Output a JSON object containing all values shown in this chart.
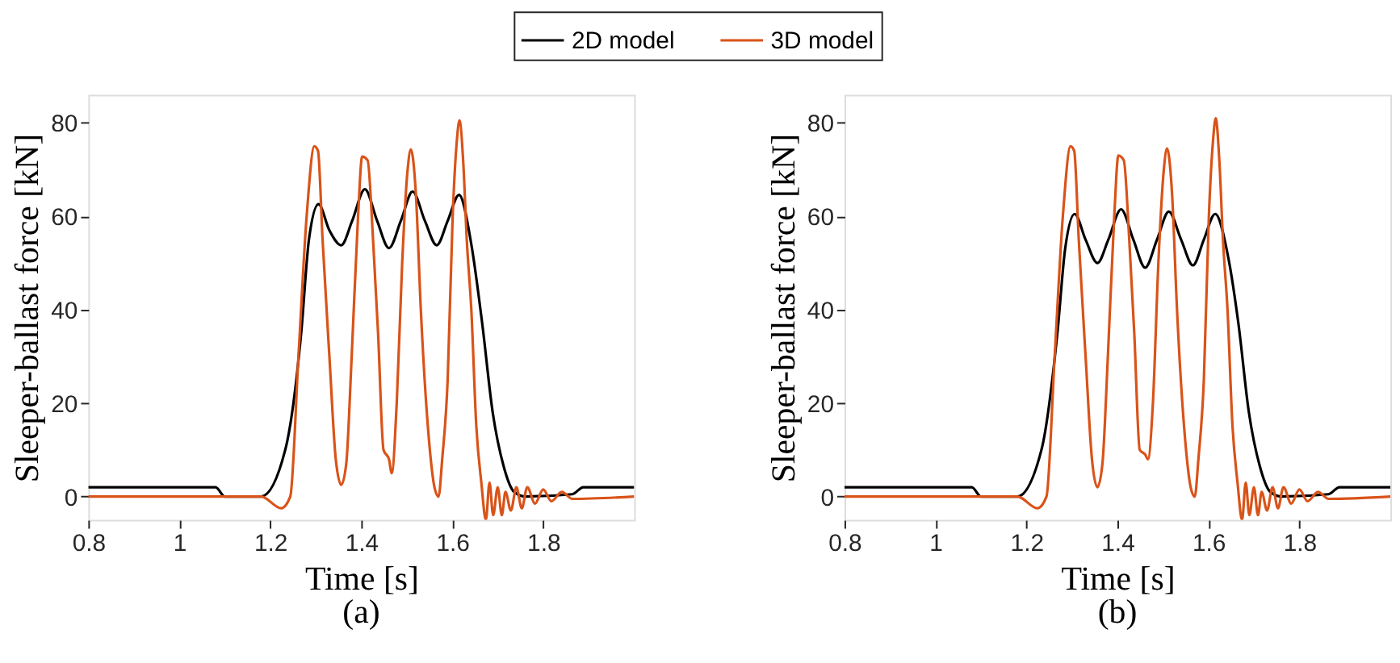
{
  "chart_data": [
    {
      "type": "line",
      "xlabel": "Time [s]",
      "ylabel": "Sleeper-ballast force [kN]",
      "annotations": [
        "(a)"
      ],
      "xlim": [
        0.8,
        2.0
      ],
      "ylim": [
        -5,
        86
      ],
      "xticks": [
        0.8,
        1,
        1.2,
        1.4,
        1.6,
        1.8
      ],
      "yticks": [
        0,
        20,
        40,
        60,
        80
      ],
      "legend": "top",
      "marker": "none",
      "line_style": "solid",
      "grid": false,
      "series": [
        {
          "name": "2D model",
          "color": "#000000",
          "x": [
            0.8,
            1.0,
            1.08,
            1.1,
            1.18,
            1.233,
            1.268,
            1.285,
            1.306,
            1.33,
            1.356,
            1.38,
            1.408,
            1.435,
            1.461,
            1.487,
            1.513,
            1.54,
            1.566,
            1.59,
            1.615,
            1.642,
            1.666,
            1.689,
            1.713,
            1.736,
            1.76,
            1.864,
            1.888,
            2.0
          ],
          "values": [
            2,
            2,
            2,
            0,
            0,
            10,
            35,
            55,
            62.6,
            57,
            53.8,
            59,
            65.8,
            59,
            53.2,
            59,
            65.3,
            59,
            53.8,
            59,
            64.6,
            54,
            37,
            18,
            6.5,
            1,
            0,
            0.5,
            2,
            2
          ]
        },
        {
          "name": "3D model",
          "color": "#d95319",
          "x": [
            0.8,
            1.18,
            1.224,
            1.244,
            1.262,
            1.28,
            1.297,
            1.305,
            1.315,
            1.33,
            1.344,
            1.356,
            1.367,
            1.379,
            1.393,
            1.402,
            1.414,
            1.426,
            1.437,
            1.449,
            1.461,
            1.467,
            1.478,
            1.49,
            1.502,
            1.509,
            1.52,
            1.531,
            1.549,
            1.561,
            1.57,
            1.578,
            1.59,
            1.601,
            1.61,
            1.616,
            1.624,
            1.632,
            1.642,
            1.653,
            1.664,
            1.674,
            1.682,
            1.69,
            1.7,
            1.709,
            1.717,
            1.729,
            1.741,
            1.753,
            1.765,
            1.782,
            1.8,
            1.818,
            1.841,
            1.864,
            2.0
          ],
          "values": [
            0,
            0,
            -2.5,
            0,
            30,
            60,
            75,
            74,
            55,
            30,
            8,
            2.5,
            7,
            30,
            60,
            72.8,
            72,
            55,
            35,
            10,
            8,
            5,
            20,
            50,
            70,
            74.3,
            65,
            40,
            12,
            2,
            0,
            8,
            25,
            60,
            76,
            80.5,
            72,
            55,
            40,
            15,
            3,
            -5,
            3,
            -4,
            2,
            -4,
            1,
            -3,
            2,
            -2.5,
            2,
            -1.5,
            1.5,
            -1,
            1,
            -0.5,
            0
          ]
        }
      ]
    },
    {
      "type": "line",
      "xlabel": "Time [s]",
      "ylabel": "Sleeper-ballast force [kN]",
      "annotations": [
        "(b)"
      ],
      "xlim": [
        0.8,
        2.0
      ],
      "ylim": [
        -5,
        86
      ],
      "xticks": [
        0.8,
        1,
        1.2,
        1.4,
        1.6,
        1.8
      ],
      "yticks": [
        0,
        20,
        40,
        60,
        80
      ],
      "legend": "top",
      "marker": "none",
      "line_style": "solid",
      "grid": false,
      "series": [
        {
          "name": "2D model",
          "color": "#000000",
          "x": [
            0.8,
            1.0,
            1.08,
            1.1,
            1.18,
            1.233,
            1.268,
            1.285,
            1.306,
            1.33,
            1.356,
            1.38,
            1.408,
            1.435,
            1.461,
            1.487,
            1.513,
            1.54,
            1.566,
            1.59,
            1.615,
            1.642,
            1.666,
            1.689,
            1.713,
            1.736,
            1.76,
            1.864,
            1.888,
            2.0
          ],
          "values": [
            2,
            2,
            2,
            0,
            0,
            10,
            35,
            53,
            60.5,
            55,
            50,
            55,
            61.5,
            55,
            49,
            55,
            61,
            55,
            49.5,
            55,
            60.5,
            52,
            37,
            18,
            6.5,
            1,
            0,
            0.5,
            2,
            2
          ]
        },
        {
          "name": "3D model",
          "color": "#d95319",
          "x": [
            0.8,
            1.18,
            1.224,
            1.244,
            1.262,
            1.28,
            1.297,
            1.305,
            1.315,
            1.33,
            1.344,
            1.356,
            1.367,
            1.379,
            1.393,
            1.402,
            1.414,
            1.426,
            1.437,
            1.449,
            1.461,
            1.467,
            1.478,
            1.49,
            1.502,
            1.509,
            1.52,
            1.531,
            1.549,
            1.561,
            1.57,
            1.578,
            1.59,
            1.601,
            1.61,
            1.616,
            1.624,
            1.632,
            1.642,
            1.653,
            1.664,
            1.674,
            1.682,
            1.69,
            1.7,
            1.709,
            1.717,
            1.729,
            1.741,
            1.753,
            1.765,
            1.782,
            1.8,
            1.818,
            1.841,
            1.864,
            2.0
          ],
          "values": [
            0,
            0,
            -2.5,
            0,
            30,
            60,
            75,
            74,
            55,
            30,
            8,
            2,
            7,
            30,
            60,
            73,
            72,
            55,
            35,
            10,
            9,
            8,
            20,
            50,
            70,
            74.5,
            65,
            40,
            12,
            2,
            0,
            8,
            25,
            60,
            76,
            81,
            72,
            55,
            40,
            15,
            3,
            -5,
            3,
            -4,
            2,
            -4,
            1,
            -3,
            2,
            -2.5,
            2,
            -1.5,
            1.5,
            -1,
            1,
            -0.5,
            0
          ]
        }
      ]
    }
  ]
}
